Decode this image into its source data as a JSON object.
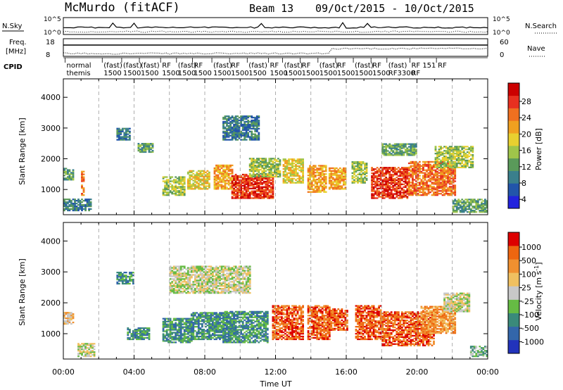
{
  "header": {
    "station": "McMurdo (fitACF)",
    "beam": "Beam 13",
    "date_range": "09/Oct/2015 - 10/Oct/2015"
  },
  "strip_panels": {
    "nsky_label": "N.Sky",
    "nsearch_label": "N.Search",
    "nsky_ticks": [
      "10^5",
      "10^0"
    ],
    "freq_label_line1": "Freq.",
    "freq_label_line2": "[MHz]",
    "freq_ticks": [
      "18",
      "8"
    ],
    "nave_label": "Nave",
    "nave_ticks": [
      "60",
      "0"
    ],
    "cpid_label": "CPID",
    "cpid_entries": [
      {
        "hour": 0.1,
        "line1": "normal",
        "line2": "themis"
      },
      {
        "hour": 2.2,
        "line1": "(fast)",
        "line2": "1500"
      },
      {
        "hour": 3.3,
        "line1": "(fast)",
        "line2": "1500"
      },
      {
        "hour": 4.3,
        "line1": "(fast)",
        "line2": "1500"
      },
      {
        "hour": 5.5,
        "line1": "RF",
        "line2": "1500"
      },
      {
        "hour": 6.4,
        "line1": "(fast)",
        "line2": "1500"
      },
      {
        "hour": 7.3,
        "line1": "RF",
        "line2": "1500"
      },
      {
        "hour": 8.4,
        "line1": "(fast)",
        "line2": "1500"
      },
      {
        "hour": 9.4,
        "line1": "RF",
        "line2": "1500"
      },
      {
        "hour": 10.4,
        "line1": "(fast)",
        "line2": "1500"
      },
      {
        "hour": 11.6,
        "line1": "RF",
        "line2": "1500"
      },
      {
        "hour": 12.4,
        "line1": "(fast)",
        "line2": "1500"
      },
      {
        "hour": 13.4,
        "line1": "RF",
        "line2": "1500"
      },
      {
        "hour": 14.4,
        "line1": "(fast)",
        "line2": "1500"
      },
      {
        "hour": 15.4,
        "line1": "RF",
        "line2": "1500"
      },
      {
        "hour": 16.4,
        "line1": "(fast)",
        "line2": "1500"
      },
      {
        "hour": 17.4,
        "line1": "RF",
        "line2": "1500"
      },
      {
        "hour": 18.3,
        "line1": "(fast)",
        "line2": "RF3300"
      },
      {
        "hour": 19.6,
        "line1": "RF 151",
        "line2": "RF"
      },
      {
        "hour": 21.1,
        "line1": "RF",
        "line2": ""
      }
    ]
  },
  "chart_data": [
    {
      "type": "heatmap",
      "name": "power",
      "ylabel": "Slant Range [km]",
      "y_ticks": [
        1000,
        2000,
        3000,
        4000
      ],
      "ylim": [
        180,
        4600
      ],
      "x_ticks": [
        "00:00",
        "04:00",
        "08:00",
        "12:00",
        "16:00",
        "20:00",
        "00:00"
      ],
      "xlim_hours": [
        0,
        24
      ],
      "colorbar": {
        "label": "Power [dB]",
        "ticks": [
          "28",
          "24",
          "20",
          "16",
          "12",
          "8",
          "4"
        ],
        "colors": [
          "#2222dd",
          "#2255aa",
          "#3a7f8c",
          "#5a9a5a",
          "#9fc54a",
          "#e8d030",
          "#f0a020",
          "#f07020",
          "#e83020",
          "#cc0000"
        ]
      },
      "regions": [
        {
          "t": [
            0.0,
            0.6
          ],
          "r": [
            1300,
            1700
          ],
          "v": 3
        },
        {
          "t": [
            0.0,
            1.6
          ],
          "r": [
            300,
            700
          ],
          "v": 2
        },
        {
          "t": [
            1.0,
            1.2
          ],
          "r": [
            800,
            1600
          ],
          "v": 7
        },
        {
          "t": [
            3.0,
            3.8
          ],
          "r": [
            2600,
            3000
          ],
          "v": 2
        },
        {
          "t": [
            4.2,
            5.0
          ],
          "r": [
            2200,
            2500
          ],
          "v": 3
        },
        {
          "t": [
            5.6,
            6.8
          ],
          "r": [
            800,
            1400
          ],
          "v": 4
        },
        {
          "t": [
            7.0,
            8.2
          ],
          "r": [
            1000,
            1600
          ],
          "v": 5
        },
        {
          "t": [
            8.5,
            9.5
          ],
          "r": [
            1000,
            1800
          ],
          "v": 6
        },
        {
          "t": [
            9.5,
            11.8
          ],
          "r": [
            700,
            1500
          ],
          "v": 8
        },
        {
          "t": [
            10.5,
            12.2
          ],
          "r": [
            1400,
            2000
          ],
          "v": 4
        },
        {
          "t": [
            9.0,
            11.0
          ],
          "r": [
            2600,
            3400
          ],
          "v": 2
        },
        {
          "t": [
            12.4,
            13.5
          ],
          "r": [
            1200,
            2000
          ],
          "v": 5
        },
        {
          "t": [
            13.8,
            14.8
          ],
          "r": [
            900,
            1800
          ],
          "v": 6
        },
        {
          "t": [
            15.0,
            15.9
          ],
          "r": [
            1000,
            1700
          ],
          "v": 6
        },
        {
          "t": [
            16.3,
            17.2
          ],
          "r": [
            1200,
            1900
          ],
          "v": 4
        },
        {
          "t": [
            17.4,
            19.5
          ],
          "r": [
            700,
            1700
          ],
          "v": 8
        },
        {
          "t": [
            19.5,
            22.2
          ],
          "r": [
            800,
            1900
          ],
          "v": 7
        },
        {
          "t": [
            18.0,
            20.0
          ],
          "r": [
            2100,
            2500
          ],
          "v": 3
        },
        {
          "t": [
            21.0,
            23.2
          ],
          "r": [
            1700,
            2400
          ],
          "v": 4
        },
        {
          "t": [
            22.0,
            24.0
          ],
          "r": [
            250,
            700
          ],
          "v": 3
        }
      ]
    },
    {
      "type": "heatmap",
      "name": "velocity",
      "ylabel": "Slant Range [km]",
      "y_ticks": [
        1000,
        2000,
        3000,
        4000
      ],
      "ylim": [
        180,
        4600
      ],
      "x_ticks": [
        "00:00",
        "04:00",
        "08:00",
        "12:00",
        "16:00",
        "20:00",
        "00:00"
      ],
      "xlabel": "Time UT",
      "xlim_hours": [
        0,
        24
      ],
      "colorbar": {
        "label": "Velocity [m s^-1]",
        "ticks": [
          "1000",
          "500",
          "100",
          "25",
          "-25",
          "-100",
          "-500",
          "-1000"
        ],
        "colors": [
          "#2233bb",
          "#3366aa",
          "#3a8a7a",
          "#66bb44",
          "#c8c8c8",
          "#f0c060",
          "#f09030",
          "#ee6610",
          "#dd0000"
        ]
      },
      "regions": [
        {
          "t": [
            0.0,
            0.6
          ],
          "r": [
            1300,
            1700
          ],
          "v": 5
        },
        {
          "t": [
            0.8,
            1.8
          ],
          "r": [
            250,
            700
          ],
          "v": 4
        },
        {
          "t": [
            3.0,
            4.0
          ],
          "r": [
            2600,
            3000
          ],
          "v": 2
        },
        {
          "t": [
            3.6,
            4.8
          ],
          "r": [
            800,
            1200
          ],
          "v": 2
        },
        {
          "t": [
            5.6,
            7.2
          ],
          "r": [
            700,
            1500
          ],
          "v": 2
        },
        {
          "t": [
            7.2,
            9.5
          ],
          "r": [
            800,
            1700
          ],
          "v": 2
        },
        {
          "t": [
            9.0,
            11.5
          ],
          "r": [
            700,
            1700
          ],
          "v": 2
        },
        {
          "t": [
            6.0,
            10.5
          ],
          "r": [
            2300,
            3200
          ],
          "v": 4
        },
        {
          "t": [
            11.8,
            13.5
          ],
          "r": [
            800,
            1900
          ],
          "v": 7
        },
        {
          "t": [
            13.8,
            15.0
          ],
          "r": [
            800,
            1900
          ],
          "v": 7
        },
        {
          "t": [
            15.0,
            16.0
          ],
          "r": [
            1100,
            1800
          ],
          "v": 7
        },
        {
          "t": [
            16.5,
            18.0
          ],
          "r": [
            800,
            1900
          ],
          "v": 7
        },
        {
          "t": [
            18.0,
            21.0
          ],
          "r": [
            600,
            1700
          ],
          "v": 7
        },
        {
          "t": [
            20.2,
            22.2
          ],
          "r": [
            1000,
            1900
          ],
          "v": 6
        },
        {
          "t": [
            21.5,
            23.0
          ],
          "r": [
            1700,
            2300
          ],
          "v": 4
        },
        {
          "t": [
            23.0,
            24.0
          ],
          "r": [
            250,
            600
          ],
          "v": 3
        }
      ]
    }
  ]
}
